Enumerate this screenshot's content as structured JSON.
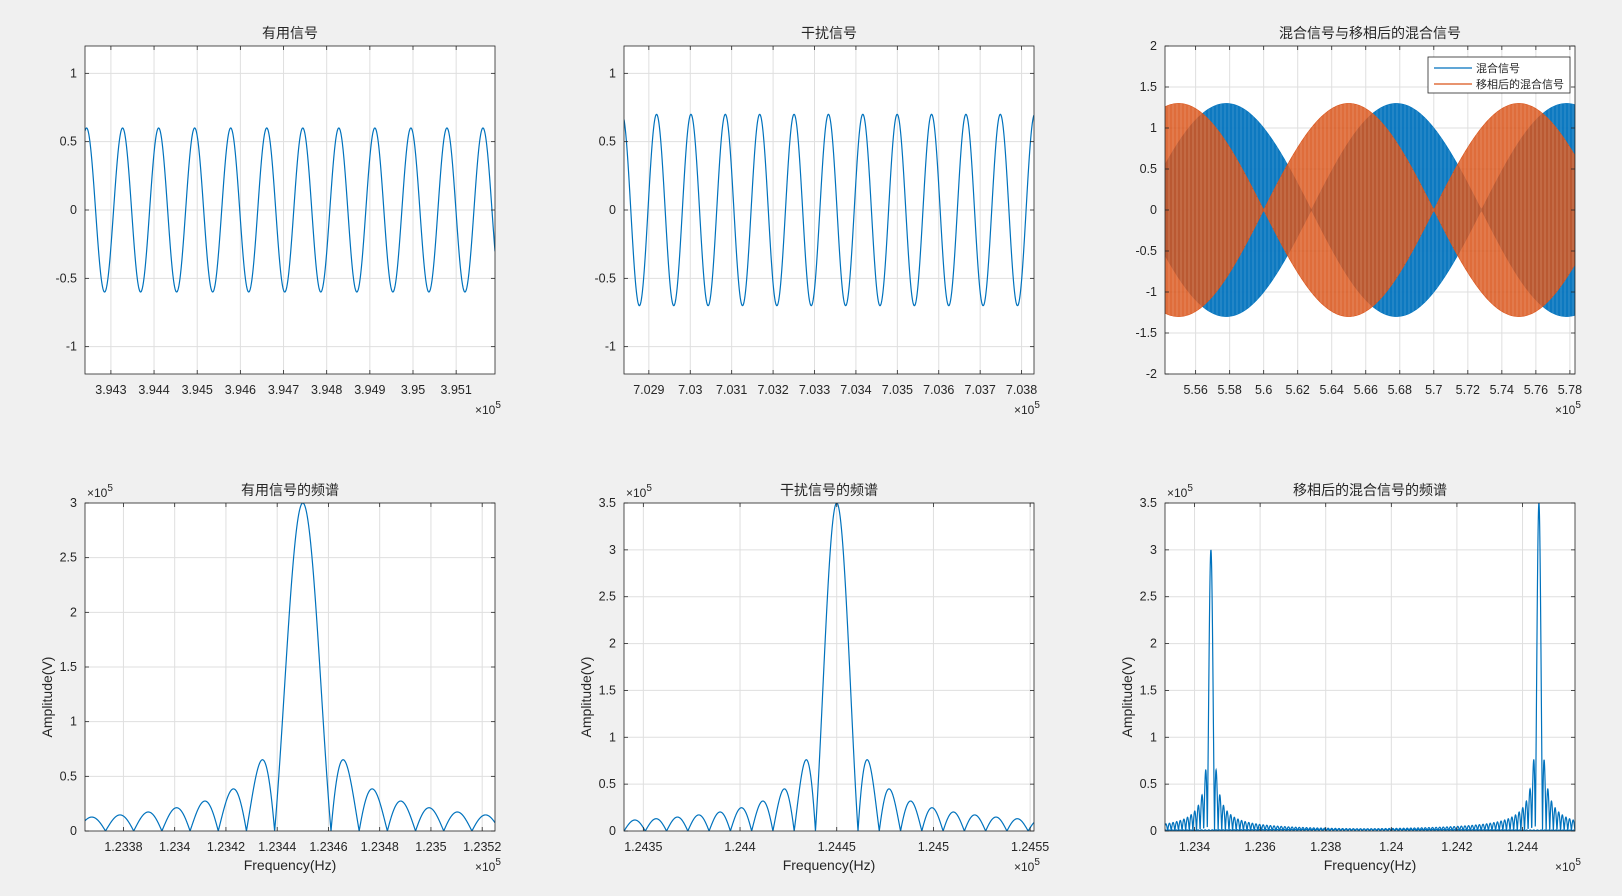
{
  "colors": {
    "blue": "#0072bd",
    "orange": "#d95319",
    "grid": "#dfdfdf",
    "axis": "#262626",
    "background": "#f0f0f0"
  },
  "chart_data": [
    {
      "type": "line",
      "title": "有用信号",
      "xlabel": "",
      "ylabel": "",
      "x_exponent": "5",
      "xlim": [
        3.9424,
        3.9519
      ],
      "ylim": [
        -1.2,
        1.2
      ],
      "xticks": [
        3.943,
        3.944,
        3.945,
        3.946,
        3.947,
        3.948,
        3.949,
        3.95,
        3.951
      ],
      "xtick_labels": [
        "3.943",
        "3.944",
        "3.945",
        "3.946",
        "3.947",
        "3.948",
        "3.949",
        "3.95",
        "3.951"
      ],
      "yticks": [
        -1,
        -0.5,
        0,
        0.5,
        1
      ],
      "ytick_labels": [
        "-1",
        "-0.5",
        "0",
        "0.5",
        "1"
      ],
      "grid": true,
      "series": [
        {
          "kind": "sine",
          "amplitude": 0.6,
          "period": 0.000835,
          "phase": 1.3,
          "color": "blue"
        }
      ]
    },
    {
      "type": "line",
      "title": "干扰信号",
      "xlabel": "",
      "ylabel": "",
      "x_exponent": "5",
      "xlim": [
        7.0284,
        7.0383
      ],
      "ylim": [
        -1.2,
        1.2
      ],
      "xticks": [
        7.029,
        7.03,
        7.031,
        7.032,
        7.033,
        7.034,
        7.035,
        7.036,
        7.037,
        7.038
      ],
      "xtick_labels": [
        "7.029",
        "7.03",
        "7.031",
        "7.032",
        "7.033",
        "7.034",
        "7.035",
        "7.036",
        "7.037",
        "7.038"
      ],
      "yticks": [
        -1,
        -0.5,
        0,
        0.5,
        1
      ],
      "ytick_labels": [
        "-1",
        "-0.5",
        "0",
        "0.5",
        "1"
      ],
      "grid": true,
      "series": [
        {
          "kind": "sine",
          "amplitude": 0.7,
          "period": 0.00083,
          "phase": 1.9,
          "color": "blue"
        }
      ]
    },
    {
      "type": "line",
      "title": "混合信号与移相后的混合信号",
      "xlabel": "",
      "ylabel": "",
      "x_exponent": "5",
      "xlim": [
        5.542,
        5.783
      ],
      "ylim": [
        -2,
        2
      ],
      "xticks": [
        5.56,
        5.58,
        5.6,
        5.62,
        5.64,
        5.66,
        5.68,
        5.7,
        5.72,
        5.74,
        5.76,
        5.78
      ],
      "xtick_labels": [
        "5.56",
        "5.58",
        "5.6",
        "5.62",
        "5.64",
        "5.66",
        "5.68",
        "5.7",
        "5.72",
        "5.74",
        "5.76",
        "5.78"
      ],
      "yticks": [
        -2,
        -1.5,
        -1,
        -0.5,
        0,
        0.5,
        1,
        1.5,
        2
      ],
      "ytick_labels": [
        "-2",
        "-1.5",
        "-1",
        "-0.5",
        "0",
        "0.5",
        "1",
        "1.5",
        "2"
      ],
      "grid": true,
      "legend": {
        "position": "top-right",
        "entries": [
          "混合信号",
          "移相后的混合信号"
        ]
      },
      "series": [
        {
          "name": "混合信号",
          "kind": "envelope",
          "amplitude": 1.3,
          "beat_period": 0.2,
          "phase": 0.028,
          "color": "blue"
        },
        {
          "name": "移相后的混合信号",
          "kind": "envelope",
          "amplitude": 1.3,
          "beat_period": 0.2,
          "phase": 0.0,
          "color": "orange"
        }
      ]
    },
    {
      "type": "line",
      "title": "有用信号的频谱",
      "xlabel": "Frequency(Hz)",
      "ylabel": "Amplitude(V)",
      "x_exponent": "5",
      "y_exponent": "5",
      "xlim": [
        1.23365,
        1.23525
      ],
      "ylim": [
        0,
        3
      ],
      "xticks": [
        1.2338,
        1.234,
        1.2342,
        1.2344,
        1.2346,
        1.2348,
        1.235,
        1.2352
      ],
      "xtick_labels": [
        "1.2338",
        "1.234",
        "1.2342",
        "1.2344",
        "1.2346",
        "1.2348",
        "1.235",
        "1.2352"
      ],
      "yticks": [
        0,
        0.5,
        1,
        1.5,
        2,
        2.5,
        3
      ],
      "ytick_labels": [
        "0",
        "0.5",
        "1",
        "1.5",
        "2",
        "2.5",
        "3"
      ],
      "grid": true,
      "series": [
        {
          "kind": "sinc",
          "center": 1.2345,
          "null_spacing": 0.00011,
          "peak": 3.0,
          "color": "blue"
        }
      ]
    },
    {
      "type": "line",
      "title": "干扰信号的频谱",
      "xlabel": "Frequency(Hz)",
      "ylabel": "Amplitude(V)",
      "x_exponent": "5",
      "y_exponent": "5",
      "xlim": [
        1.2434,
        1.24552
      ],
      "ylim": [
        0,
        3.5
      ],
      "xticks": [
        1.2435,
        1.244,
        1.2445,
        1.245,
        1.2455
      ],
      "xtick_labels": [
        "1.2435",
        "1.244",
        "1.2445",
        "1.245",
        "1.2455"
      ],
      "yticks": [
        0,
        0.5,
        1,
        1.5,
        2,
        2.5,
        3,
        3.5
      ],
      "ytick_labels": [
        "0",
        "0.5",
        "1",
        "1.5",
        "2",
        "2.5",
        "3",
        "3.5"
      ],
      "grid": true,
      "series": [
        {
          "kind": "sinc",
          "center": 1.2445,
          "null_spacing": 0.00011,
          "peak": 3.5,
          "color": "blue"
        }
      ]
    },
    {
      "type": "line",
      "title": "移相后的混合信号的频谱",
      "xlabel": "Frequency(Hz)",
      "ylabel": "Amplitude(V)",
      "x_exponent": "5",
      "y_exponent": "5",
      "xlim": [
        1.2331,
        1.2456
      ],
      "ylim": [
        0,
        3.5
      ],
      "xticks": [
        1.234,
        1.236,
        1.238,
        1.24,
        1.242,
        1.244
      ],
      "xtick_labels": [
        "1.234",
        "1.236",
        "1.238",
        "1.24",
        "1.242",
        "1.244"
      ],
      "yticks": [
        0,
        0.5,
        1,
        1.5,
        2,
        2.5,
        3,
        3.5
      ],
      "ytick_labels": [
        "0",
        "0.5",
        "1",
        "1.5",
        "2",
        "2.5",
        "3",
        "3.5"
      ],
      "grid": true,
      "series": [
        {
          "kind": "sinc",
          "center": 1.2345,
          "null_spacing": 0.00011,
          "peak": 3.0,
          "color": "blue"
        },
        {
          "kind": "sinc",
          "center": 1.2445,
          "null_spacing": 0.00011,
          "peak": 3.5,
          "color": "blue"
        }
      ]
    }
  ]
}
